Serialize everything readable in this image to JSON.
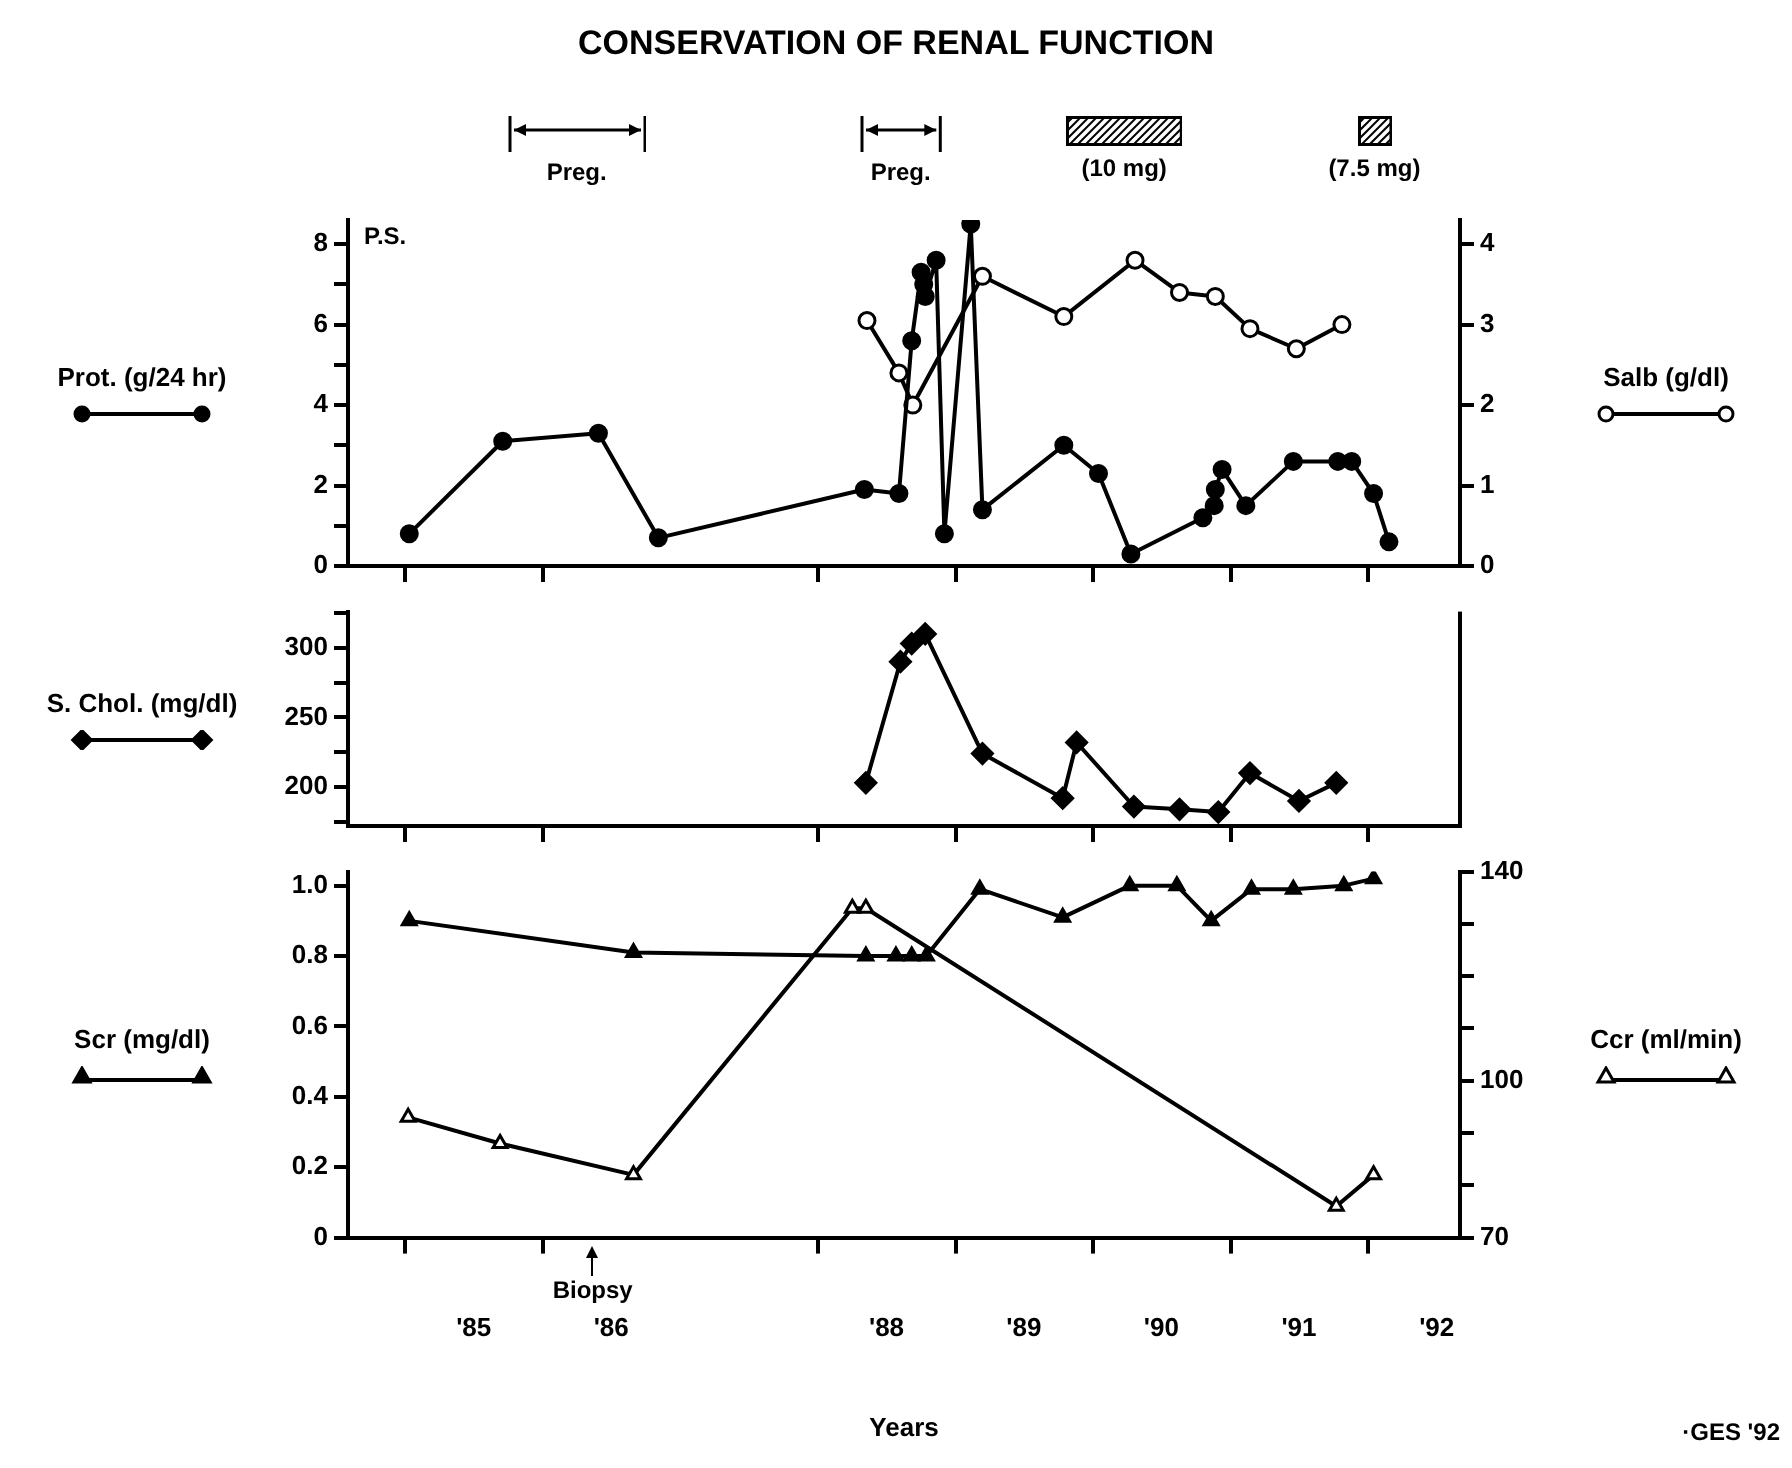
{
  "chart_data": [
    {
      "type": "line",
      "title": "CONSERVATION OF RENAL FUNCTION",
      "ylabel": "Prot. (g/24 hr)",
      "y2label": "Salb (g/dl)",
      "xlim": [
        "1984-08-01",
        "1992-09-01"
      ],
      "xticks": [
        {
          "value": "1985-01-01",
          "label": null
        },
        {
          "value": "1986-01-01",
          "label": null
        },
        {
          "value": "1988-01-01",
          "label": null
        },
        {
          "value": "1989-01-01",
          "label": null
        },
        {
          "value": "1990-01-01",
          "label": null
        },
        {
          "value": "1991-01-01",
          "label": null
        },
        {
          "value": "1992-01-01",
          "label": null
        }
      ],
      "ylim": [
        0,
        8.6
      ],
      "yticks": [
        0,
        {
          "value": 1,
          "label": null
        },
        2,
        {
          "value": 3,
          "label": null
        },
        4,
        {
          "value": 5,
          "label": null
        },
        6,
        {
          "value": 7,
          "label": null
        },
        8
      ],
      "y2lim": [
        0,
        4.3
      ],
      "y2ticks": [
        0,
        1,
        2,
        3,
        4
      ],
      "tick_labels": "y",
      "legend": false,
      "annotations": [
        "P.S.",
        "Preg.",
        "Preg.",
        "(10 mg)",
        "(7.5 mg)"
      ],
      "series": [
        {
          "color": "#000000",
          "marker": "circle",
          "x": [
            "1985-01-11",
            "1985-09-16",
            "1986-05-28",
            "1986-11-03",
            "1988-05-03",
            "1988-08-03",
            "1988-09-06",
            "1988-10-01",
            "1988-10-08",
            "1988-10-12",
            "1988-11-10",
            "1988-12-02",
            "1989-02-10",
            "1989-03-13",
            "1989-10-15",
            "1990-01-15",
            "1990-04-11",
            "1990-10-19",
            "1990-11-18",
            "1990-11-21",
            "1990-12-09",
            "1991-02-10",
            "1991-06-16",
            "1991-10-12",
            "1991-11-18",
            "1992-01-15",
            "1992-02-25"
          ],
          "values": [
            0.8,
            3.1,
            3.3,
            0.7,
            1.9,
            1.8,
            5.6,
            7.3,
            7.0,
            6.7,
            7.6,
            0.8,
            8.5,
            1.4,
            3.0,
            2.3,
            0.3,
            1.2,
            1.5,
            1.9,
            2.4,
            1.5,
            2.6,
            2.6,
            2.6,
            1.8,
            0.6
          ]
        },
        {
          "color": "#000000",
          "marker": "circle",
          "axis": "y2",
          "x": [
            "1988-05-10",
            "1988-08-03",
            "1988-09-09",
            "1989-03-13",
            "1989-10-15",
            "1990-04-22",
            "1990-08-18",
            "1990-11-21",
            "1991-02-21",
            "1991-06-24",
            "1991-10-23"
          ],
          "values": [
            3.05,
            2.4,
            2.0,
            3.6,
            3.1,
            3.8,
            3.4,
            3.35,
            2.95,
            2.7,
            3.0
          ]
        }
      ]
    },
    {
      "type": "line",
      "ylabel": "S. Chol. (mg/dl)",
      "xlim": [
        "1984-08-01",
        "1992-09-01"
      ],
      "xticks": [
        {
          "value": "1985-01-01",
          "label": null
        },
        {
          "value": "1986-01-01",
          "label": null
        },
        {
          "value": "1988-01-01",
          "label": null
        },
        {
          "value": "1989-01-01",
          "label": null
        },
        {
          "value": "1990-01-01",
          "label": null
        },
        {
          "value": "1991-01-01",
          "label": null
        },
        {
          "value": "1992-01-01",
          "label": null
        }
      ],
      "ylim": [
        172,
        326
      ],
      "yticks": [
        {
          "value": 175,
          "label": null
        },
        200,
        {
          "value": 225,
          "label": null
        },
        250,
        {
          "value": 275,
          "label": null
        },
        300,
        {
          "value": 325,
          "label": null
        }
      ],
      "tick_labels": "y",
      "legend": false,
      "series": [
        {
          "color": "#000000",
          "marker": "diamond",
          "x": [
            "1988-05-07",
            "1988-08-07",
            "1988-09-06",
            "1988-10-12",
            "1989-03-13",
            "1989-10-12",
            "1989-11-18",
            "1990-04-19",
            "1990-08-18",
            "1990-11-29",
            "1991-02-21",
            "1991-07-01",
            "1991-10-08"
          ],
          "values": [
            203,
            290,
            303,
            310,
            224,
            192,
            232,
            186,
            184,
            182,
            210,
            190,
            203
          ]
        }
      ]
    },
    {
      "type": "line",
      "xlabel": "Years",
      "ylabel": "Scr (mg/dl)",
      "y2label": "Ccr (ml/min)",
      "xlim": [
        "1984-08-01",
        "1992-09-01"
      ],
      "xticks": [
        {
          "value": "1985-01-01",
          "label": null
        },
        {
          "value": "1985-07-01",
          "label": "'85"
        },
        {
          "value": "1986-01-01",
          "label": null
        },
        {
          "value": "1986-07-01",
          "label": "'86"
        },
        {
          "value": "1988-01-01",
          "label": null
        },
        {
          "value": "1988-07-01",
          "label": "'88"
        },
        {
          "value": "1989-01-01",
          "label": null
        },
        {
          "value": "1989-07-01",
          "label": "'89"
        },
        {
          "value": "1990-01-01",
          "label": null
        },
        {
          "value": "1990-07-01",
          "label": "'90"
        },
        {
          "value": "1991-01-01",
          "label": null
        },
        {
          "value": "1991-07-01",
          "label": "'91"
        },
        {
          "value": "1992-01-01",
          "label": null
        },
        {
          "value": "1992-07-01",
          "label": "'92"
        }
      ],
      "ylim": [
        0,
        1.04
      ],
      "yticks": [
        0,
        0.2,
        0.4,
        0.6,
        0.8,
        {
          "value": 1,
          "label": "1.0"
        }
      ],
      "y2lim": [
        70,
        140
      ],
      "y2ticks": [
        70,
        {
          "value": 80,
          "label": null
        },
        {
          "value": 90,
          "label": null
        },
        100,
        {
          "value": 110,
          "label": null
        },
        {
          "value": 120,
          "label": null
        },
        {
          "value": 130,
          "label": null
        },
        140
      ],
      "legend": false,
      "annotations": [
        "Biopsy",
        "·GES '92"
      ],
      "series": [
        {
          "color": "#000000",
          "marker": "triangle",
          "x": [
            "1985-01-11",
            "1986-08-29",
            "1988-05-07",
            "1988-07-26",
            "1988-09-06",
            "1988-10-15",
            "1989-03-06",
            "1989-10-12",
            "1990-04-08",
            "1990-08-11",
            "1990-11-10",
            "1991-02-25",
            "1991-06-16",
            "1991-10-28",
            "1992-01-15"
          ],
          "values": [
            0.9,
            0.81,
            0.8,
            0.8,
            0.8,
            0.8,
            0.99,
            0.91,
            1.0,
            1.0,
            0.9,
            0.99,
            0.99,
            1.0,
            1.02
          ]
        },
        {
          "color": "#000000",
          "marker": "triangle",
          "axis": "y2",
          "x": [
            "1985-01-08",
            "1985-09-09",
            "1986-08-29",
            "1988-04-01",
            "1988-05-07",
            "1991-10-08",
            "1992-01-15"
          ],
          "values": [
            93,
            88,
            82,
            133,
            133,
            76,
            82
          ]
        }
      ]
    }
  ]
}
